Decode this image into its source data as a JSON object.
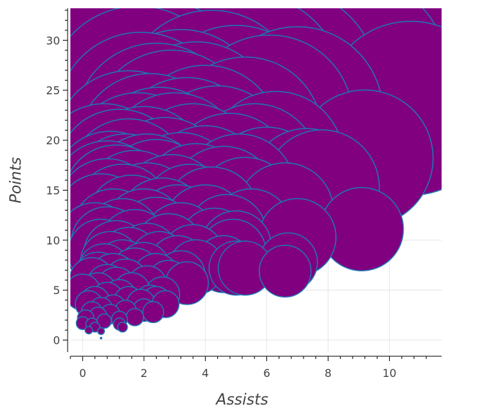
{
  "chart_data": {
    "type": "scatter",
    "title": "",
    "xlabel": "Assists",
    "ylabel": "Points",
    "xlim": [
      -0.4,
      11.7
    ],
    "ylim": [
      -1.2,
      33.2
    ],
    "xticks": [
      0,
      2,
      4,
      6,
      8,
      10
    ],
    "yticks": [
      0,
      5,
      10,
      15,
      20,
      25,
      30
    ],
    "grid": true,
    "marker_fill": "#800080",
    "marker_edge": "#1f77b4",
    "size_encodes": "Points",
    "points": [
      [
        10.7,
        31.7
      ],
      [
        11.2,
        29.0
      ],
      [
        5.9,
        29.0
      ],
      [
        3.9,
        28.4
      ],
      [
        2.1,
        28.0
      ],
      [
        4.6,
        27.4
      ],
      [
        8.7,
        26.5
      ],
      [
        6.5,
        25.6
      ],
      [
        3.0,
        25.4
      ],
      [
        5.4,
        25.2
      ],
      [
        1.8,
        24.3
      ],
      [
        2.6,
        24.6
      ],
      [
        4.2,
        24.0
      ],
      [
        7.0,
        22.8
      ],
      [
        10.7,
        23.2
      ],
      [
        5.0,
        22.9
      ],
      [
        3.2,
        22.6
      ],
      [
        1.9,
        22.4
      ],
      [
        6.1,
        22.2
      ],
      [
        3.7,
        21.7
      ],
      [
        2.4,
        21.6
      ],
      [
        2.9,
        21.1
      ],
      [
        5.3,
        20.6
      ],
      [
        4.0,
        20.0
      ],
      [
        1.5,
        19.6
      ],
      [
        2.2,
        19.4
      ],
      [
        3.4,
        19.1
      ],
      [
        6.3,
        18.1
      ],
      [
        9.2,
        18.2
      ],
      [
        2.5,
        18.4
      ],
      [
        4.4,
        18.5
      ],
      [
        1.8,
        18.0
      ],
      [
        3.0,
        18.0
      ],
      [
        5.6,
        17.2
      ],
      [
        0.7,
        17.2
      ],
      [
        2.0,
        17.0
      ],
      [
        3.6,
        17.2
      ],
      [
        1.2,
        16.8
      ],
      [
        4.8,
        16.5
      ],
      [
        2.7,
        16.2
      ],
      [
        4.0,
        15.6
      ],
      [
        1.5,
        16.1
      ],
      [
        6.0,
        15.5
      ],
      [
        7.3,
        15.4
      ],
      [
        7.8,
        15.3
      ],
      [
        0.9,
        15.2
      ],
      [
        1.4,
        15.0
      ],
      [
        2.1,
        15.0
      ],
      [
        3.2,
        15.1
      ],
      [
        5.1,
        15.0
      ],
      [
        0.8,
        14.5
      ],
      [
        2.4,
        14.6
      ],
      [
        1.1,
        14.2
      ],
      [
        3.7,
        14.3
      ],
      [
        4.6,
        14.1
      ],
      [
        1.7,
        13.8
      ],
      [
        2.9,
        13.5
      ],
      [
        0.8,
        13.2
      ],
      [
        6.6,
        12.9
      ],
      [
        5.3,
        13.3
      ],
      [
        1.3,
        12.8
      ],
      [
        2.1,
        12.9
      ],
      [
        3.5,
        12.8
      ],
      [
        4.2,
        12.6
      ],
      [
        0.6,
        12.1
      ],
      [
        1.6,
        12.0
      ],
      [
        2.6,
        11.8
      ],
      [
        5.5,
        11.0
      ],
      [
        9.1,
        11.1
      ],
      [
        3.1,
        11.3
      ],
      [
        4.0,
        11.3
      ],
      [
        1.0,
        11.0
      ],
      [
        2.0,
        11.0
      ],
      [
        4.7,
        10.6
      ],
      [
        0.4,
        10.0
      ],
      [
        1.3,
        10.3
      ],
      [
        2.4,
        10.4
      ],
      [
        7.0,
        10.3
      ],
      [
        3.2,
        10.0
      ],
      [
        4.3,
        9.6
      ],
      [
        5.0,
        9.4
      ],
      [
        0.8,
        9.7
      ],
      [
        1.7,
        9.5
      ],
      [
        2.8,
        9.2
      ],
      [
        0.6,
        8.8
      ],
      [
        1.1,
        8.7
      ],
      [
        2.1,
        8.5
      ],
      [
        3.6,
        8.4
      ],
      [
        4.9,
        8.8
      ],
      [
        1.5,
        8.2
      ],
      [
        0.9,
        7.9
      ],
      [
        2.5,
        7.9
      ],
      [
        6.7,
        7.8
      ],
      [
        3.1,
        7.6
      ],
      [
        4.6,
        7.6
      ],
      [
        5.0,
        7.2
      ],
      [
        5.3,
        7.2
      ],
      [
        1.3,
        7.3
      ],
      [
        0.7,
        7.0
      ],
      [
        2.0,
        7.1
      ],
      [
        6.6,
        6.9
      ],
      [
        3.7,
        7.3
      ],
      [
        1.7,
        6.7
      ],
      [
        2.4,
        6.3
      ],
      [
        1.0,
        6.3
      ],
      [
        0.5,
        6.4
      ],
      [
        3.2,
        6.5
      ],
      [
        0.3,
        6.0
      ],
      [
        1.4,
        5.9
      ],
      [
        2.8,
        5.8
      ],
      [
        3.4,
        5.7
      ],
      [
        0.8,
        5.5
      ],
      [
        2.1,
        5.4
      ],
      [
        1.1,
        5.3
      ],
      [
        0.5,
        4.9
      ],
      [
        1.6,
        4.9
      ],
      [
        0.0,
        4.8
      ],
      [
        2.6,
        4.6
      ],
      [
        1.2,
        4.4
      ],
      [
        0.8,
        4.2
      ],
      [
        2.2,
        4.0
      ],
      [
        1.5,
        3.9
      ],
      [
        0.4,
        3.9
      ],
      [
        2.4,
        3.9
      ],
      [
        0.2,
        3.6
      ],
      [
        1.9,
        3.7
      ],
      [
        1.0,
        3.3
      ],
      [
        0.6,
        3.1
      ],
      [
        2.7,
        3.6
      ],
      [
        1.4,
        2.9
      ],
      [
        0.3,
        2.8
      ],
      [
        2.0,
        3.0
      ],
      [
        0.9,
        2.6
      ],
      [
        2.3,
        2.8
      ],
      [
        0.5,
        2.4
      ],
      [
        1.7,
        2.3
      ],
      [
        0.1,
        2.2
      ],
      [
        1.2,
        2.1
      ],
      [
        0.7,
        1.9
      ],
      [
        0.3,
        1.6
      ],
      [
        1.2,
        1.6
      ],
      [
        0.0,
        1.7
      ],
      [
        0.4,
        1.3
      ],
      [
        1.3,
        1.3
      ],
      [
        0.2,
        1.0
      ],
      [
        0.6,
        0.9
      ],
      [
        0.6,
        0.2
      ]
    ]
  }
}
